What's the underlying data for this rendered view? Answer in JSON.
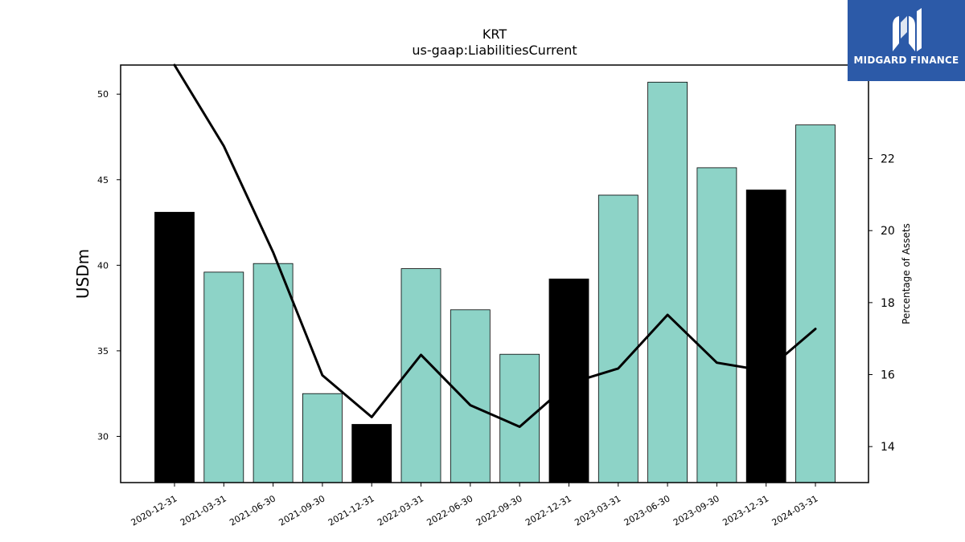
{
  "brand": {
    "name": "MIDGARD FINANCE",
    "color": "#2c5aa8"
  },
  "chart_data": {
    "type": "bar",
    "title": "KRT",
    "subtitle": "us-gaap:LiabilitiesCurrent",
    "ylabel": "USDm",
    "y2label": "Percentage of Assets",
    "categories": [
      "2020-12-31",
      "2021-03-31",
      "2021-06-30",
      "2021-09-30",
      "2021-12-31",
      "2022-03-31",
      "2022-06-30",
      "2022-09-30",
      "2022-12-31",
      "2023-03-31",
      "2023-06-30",
      "2023-09-30",
      "2023-12-31",
      "2024-03-31"
    ],
    "series": [
      {
        "type": "bar",
        "axis": "left",
        "values": [
          43.1,
          39.6,
          40.1,
          32.5,
          30.7,
          39.8,
          37.4,
          34.8,
          39.2,
          44.1,
          50.7,
          45.7,
          44.4,
          48.2
        ],
        "colors": [
          "#000000",
          "#8dd3c7",
          "#8dd3c7",
          "#8dd3c7",
          "#000000",
          "#8dd3c7",
          "#8dd3c7",
          "#8dd3c7",
          "#000000",
          "#8dd3c7",
          "#8dd3c7",
          "#8dd3c7",
          "#000000",
          "#8dd3c7"
        ]
      },
      {
        "type": "line",
        "axis": "right",
        "color": "#000000",
        "values": [
          24.6,
          22.35,
          19.4,
          15.98,
          14.82,
          16.55,
          15.15,
          14.55,
          15.75,
          16.17,
          17.66,
          16.33,
          16.1,
          17.27
        ]
      }
    ],
    "ylim": [
      27.3,
      51.7
    ],
    "y2lim": [
      13.0,
      24.6
    ],
    "yticks": [
      30,
      35,
      40,
      45,
      50
    ],
    "y2ticks": [
      14,
      16,
      18,
      20,
      22
    ],
    "grid": false,
    "legend": "none"
  }
}
